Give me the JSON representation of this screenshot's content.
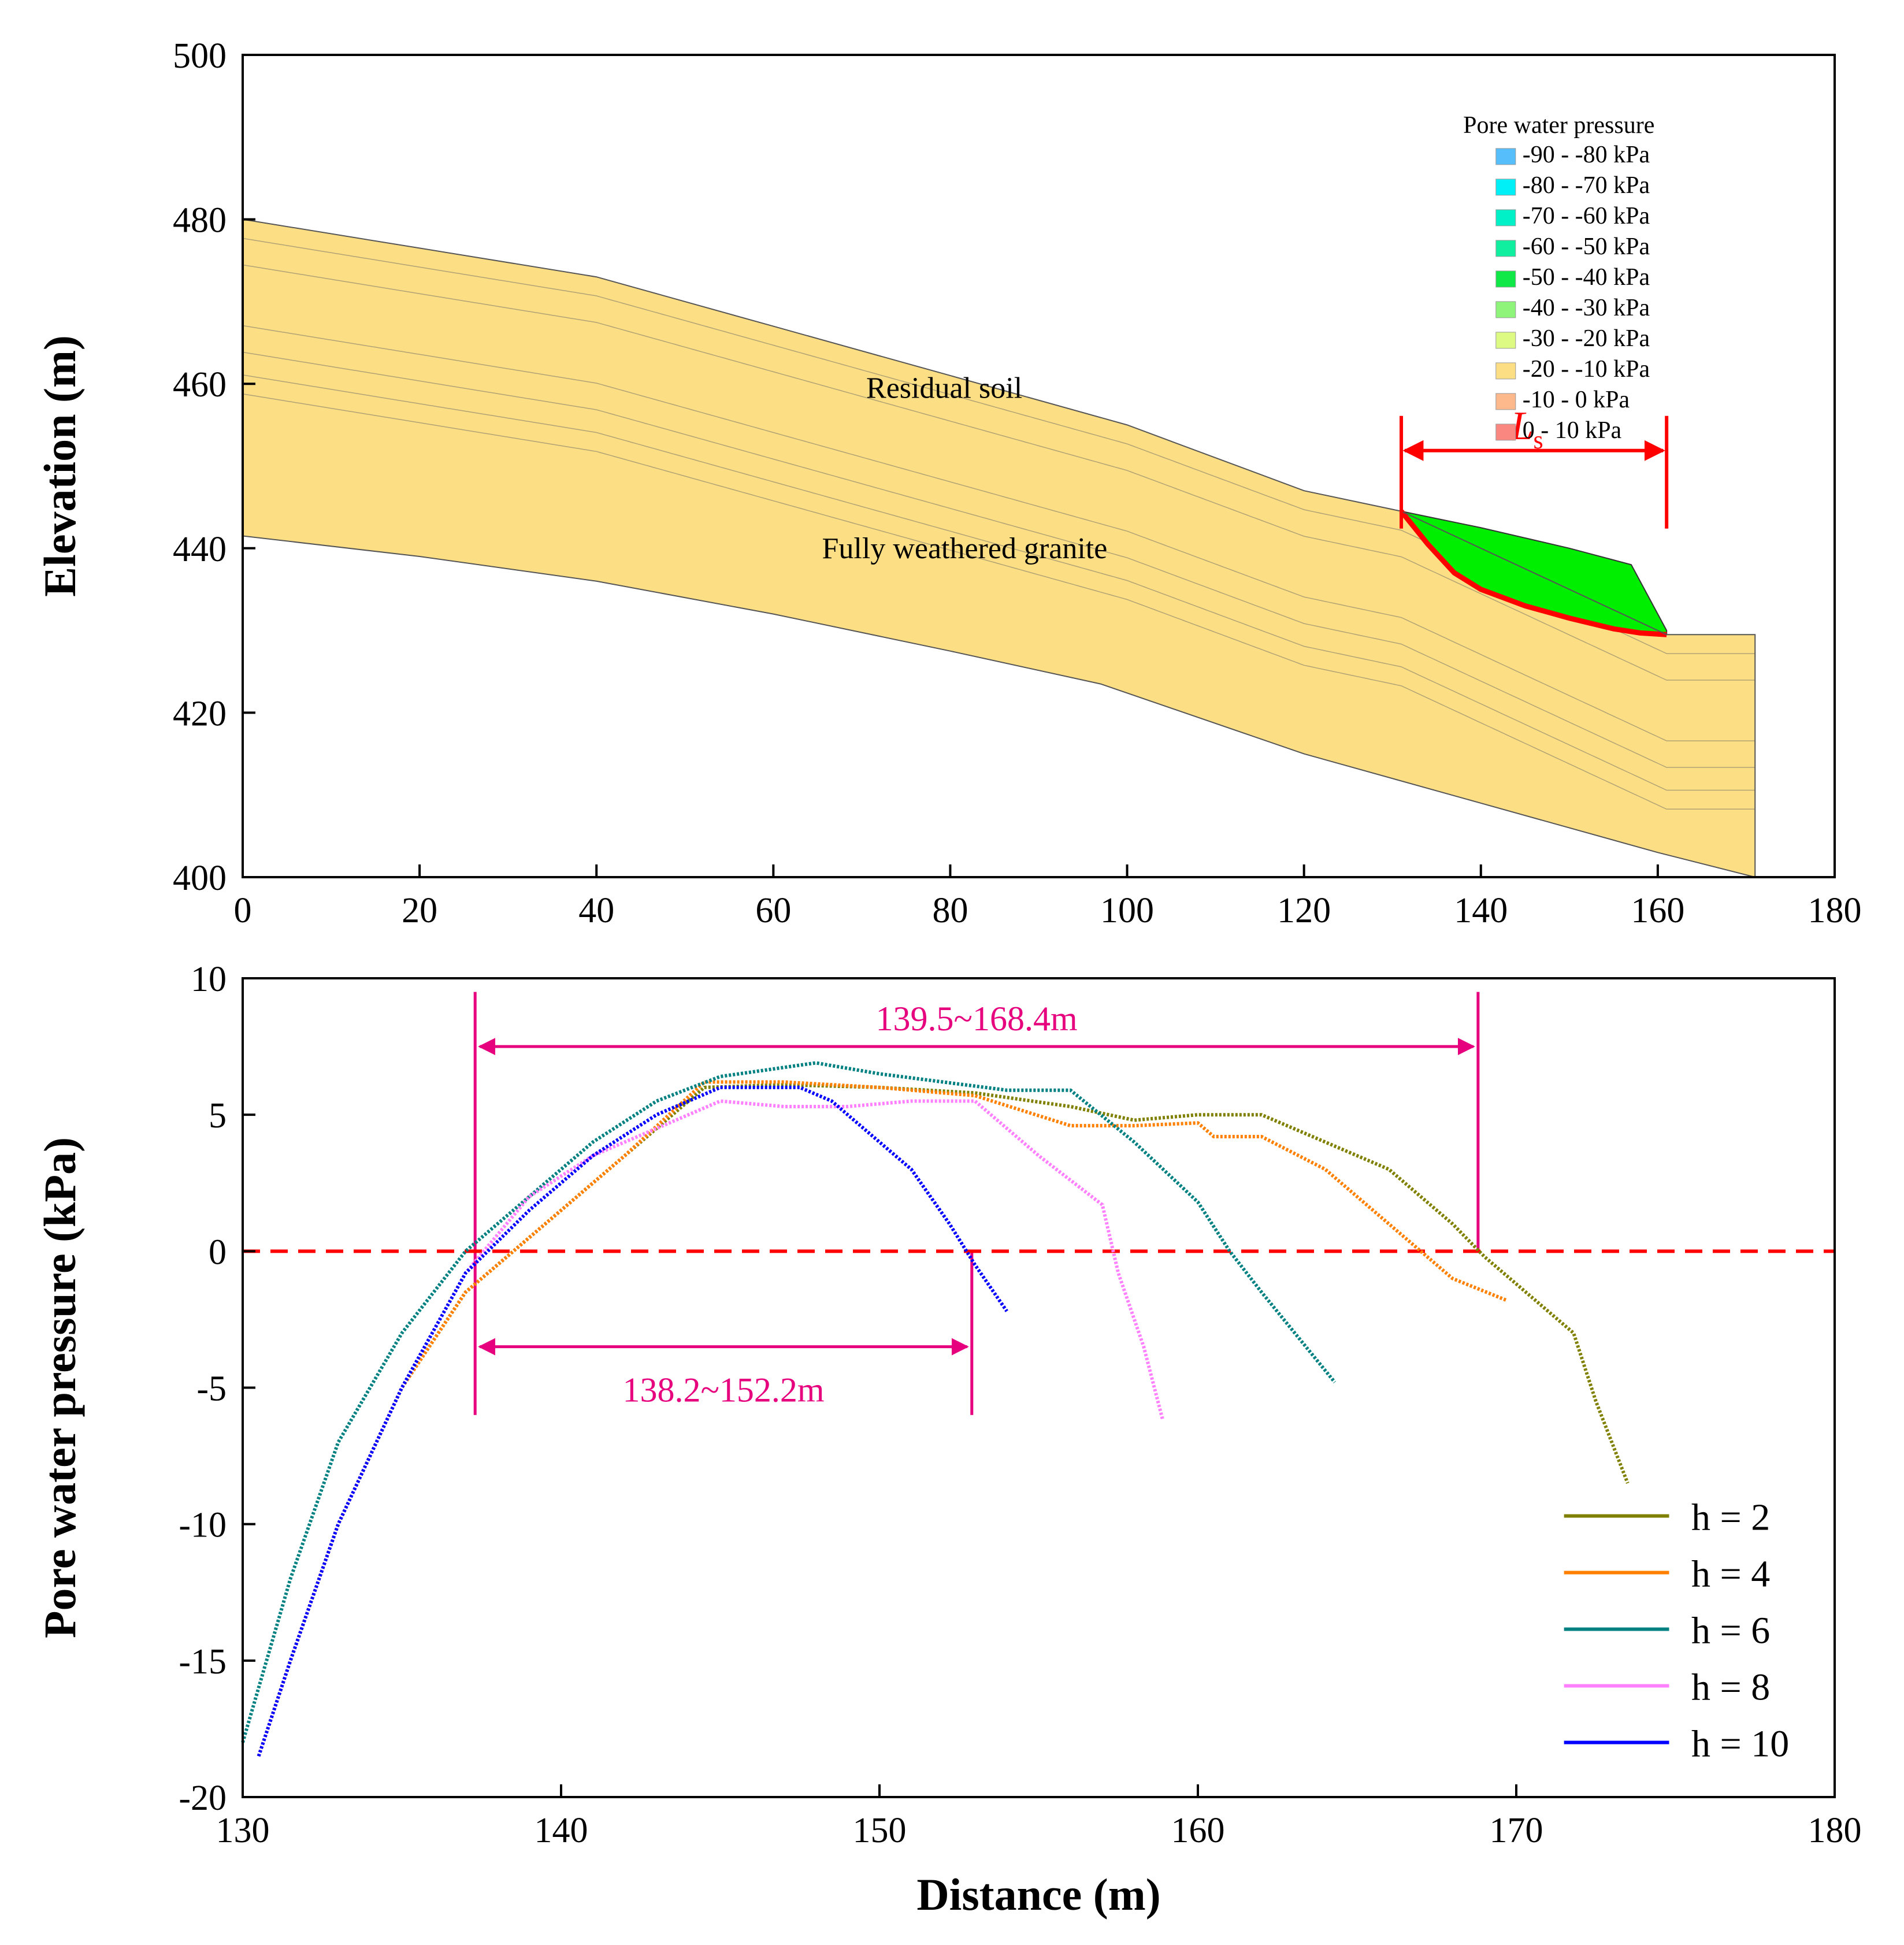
{
  "chart_data": [
    {
      "type": "contour",
      "xlabel": "",
      "ylabel": "Elevation (m)",
      "xlim": [
        0,
        180
      ],
      "ylim": [
        400,
        500
      ],
      "xticks": [
        "0",
        "20",
        "40",
        "60",
        "80",
        "100",
        "120",
        "140",
        "160",
        "180"
      ],
      "yticks": [
        "400",
        "420",
        "440",
        "460",
        "480",
        "500"
      ],
      "legend": {
        "title": "Pore water pressure",
        "entries": [
          {
            "label": "-90 - -80 kPa",
            "color": "#56bffb"
          },
          {
            "label": "-80 - -70 kPa",
            "color": "#00f0f8"
          },
          {
            "label": "-70 - -60 kPa",
            "color": "#00f0c8"
          },
          {
            "label": "-60 - -50 kPa",
            "color": "#10eea0"
          },
          {
            "label": "-50 - -40 kPa",
            "color": "#10e848"
          },
          {
            "label": "-40 - -30 kPa",
            "color": "#8ef47a"
          },
          {
            "label": "-30 - -20 kPa",
            "color": "#ddfa82"
          },
          {
            "label": "-20 - -10 kPa",
            "color": "#fcdf84"
          },
          {
            "label": "-10 - 0 kPa",
            "color": "#fdb88c"
          },
          {
            "label": "0 - 10 kPa",
            "color": "#fa8880"
          }
        ]
      },
      "annotations": {
        "residual_soil": "Residual soil",
        "granite": "Fully weathered granite",
        "ls_main": "L",
        "ls_sub": "s"
      },
      "surface_profile": {
        "x": [
          0,
          20,
          40,
          60,
          80,
          100,
          120,
          131,
          161,
          171
        ],
        "y": [
          480,
          476.5,
          473,
          467,
          461,
          455,
          447,
          444.5,
          429.5,
          429.5
        ]
      },
      "bottom_profile": {
        "x": [
          0,
          20,
          40,
          60,
          80,
          97,
          120,
          140,
          160,
          171
        ],
        "y": [
          441.5,
          439,
          436,
          432,
          427.5,
          423.5,
          415,
          409,
          403,
          400
        ]
      },
      "slip_zone": {
        "x": [
          131,
          140,
          150,
          157,
          161
        ],
        "y": [
          444.5,
          442.5,
          440,
          438,
          430
        ]
      },
      "slip_surface": {
        "x": [
          131,
          134,
          137,
          140,
          145,
          150,
          155,
          158,
          161
        ],
        "y": [
          444.5,
          440.5,
          437,
          435,
          433,
          431.5,
          430.2,
          429.7,
          429.5
        ]
      },
      "ls_range": [
        131,
        161
      ]
    },
    {
      "type": "line",
      "xlabel": "Distance (m)",
      "ylabel": "Pore water pressure (kPa)",
      "xlim": [
        130,
        180
      ],
      "ylim": [
        -20,
        10
      ],
      "xticks": [
        "130",
        "140",
        "150",
        "160",
        "170",
        "180"
      ],
      "yticks": [
        "-20",
        "-15",
        "-10",
        "-5",
        "0",
        "5",
        "10"
      ],
      "zero_line": 0,
      "series": [
        {
          "name": "h = 2",
          "color": "#808000",
          "x": [
            130.5,
            131.5,
            133,
            135,
            137,
            140,
            142,
            144.5,
            147,
            150,
            153,
            156,
            158,
            160,
            162,
            164,
            166,
            168,
            169,
            170,
            171.8,
            172.5,
            173.5
          ],
          "y": [
            -18.5,
            -15,
            -10,
            -5,
            -1.5,
            1.5,
            3.5,
            6,
            6.1,
            6,
            5.8,
            5.3,
            4.8,
            5,
            5,
            4,
            3,
            1,
            -0.2,
            -1.2,
            -3,
            -5.5,
            -8.5
          ]
        },
        {
          "name": "h = 4",
          "color": "#ff8000",
          "x": [
            130.5,
            131.5,
            133,
            135,
            137,
            140,
            142,
            144.5,
            147,
            150,
            153,
            156,
            158,
            160,
            160.5,
            162,
            164,
            166,
            168,
            169.7
          ],
          "y": [
            -18.5,
            -15,
            -10,
            -5,
            -1.5,
            1.5,
            3.5,
            6.2,
            6.2,
            6,
            5.7,
            4.6,
            4.6,
            4.7,
            4.2,
            4.2,
            3,
            1,
            -1,
            -1.8
          ]
        },
        {
          "name": "h = 6",
          "color": "#008080",
          "x": [
            130,
            131.5,
            133,
            135,
            137,
            139,
            141,
            143,
            145,
            148,
            150,
            152,
            154,
            156,
            158,
            160,
            161,
            162,
            164.3
          ],
          "y": [
            -18,
            -12,
            -7,
            -3,
            0,
            2,
            4,
            5.5,
            6.4,
            6.9,
            6.5,
            6.2,
            5.9,
            5.9,
            4,
            1.8,
            0,
            -1.5,
            -4.8
          ]
        },
        {
          "name": "h = 8",
          "color": "#ff80ff",
          "x": [
            130.5,
            131.5,
            133,
            135,
            137,
            139,
            141,
            143,
            145,
            147,
            149,
            151,
            153,
            155,
            157,
            157.5,
            158.3,
            158.9
          ],
          "y": [
            -18.5,
            -15,
            -10,
            -5,
            -0.8,
            2,
            3.5,
            4.5,
            5.5,
            5.3,
            5.3,
            5.5,
            5.5,
            3.5,
            1.7,
            -0.8,
            -3.5,
            -6.2
          ]
        },
        {
          "name": "h = 10",
          "color": "#0000ff",
          "x": [
            130.5,
            131.5,
            133,
            135,
            137,
            139,
            141,
            143,
            145,
            147.5,
            148.5,
            150,
            151,
            152.2,
            153,
            154
          ],
          "y": [
            -18.5,
            -15,
            -10,
            -5,
            -0.8,
            1.5,
            3.5,
            5,
            6,
            6,
            5.5,
            4,
            3,
            1,
            -0.5,
            -2.2
          ]
        }
      ],
      "ranges": [
        {
          "label": "139.5~168.4m",
          "x0": 137.3,
          "x1": 168.8,
          "y": 7.5
        },
        {
          "label": "138.2~152.2m",
          "x0": 137.3,
          "x1": 152.9,
          "y": -3.5
        }
      ]
    }
  ]
}
